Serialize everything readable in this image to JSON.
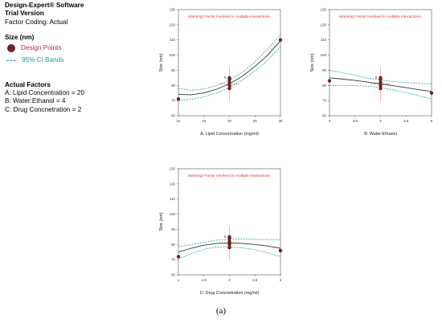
{
  "info": {
    "software": "Design-Expert® Software",
    "version": "Trial Version",
    "coding": "Factor Coding: Actual",
    "response": "Size (nm)",
    "legend": {
      "points": "Design Points",
      "ci": "95% CI Bands"
    },
    "actual_factors": {
      "heading": "Actual Factors",
      "a": "A: Lipid Concentration = 20",
      "b": "B: Water:Ethanol = 4",
      "c": "C: Drug Concnetration = 2"
    }
  },
  "caption": "(a)",
  "colors": {
    "line": "#333333",
    "ci": "#1aa3a3",
    "points": "#8b1a1a",
    "warning": "#e03030",
    "crosshair": "#e03030"
  },
  "chart_data": [
    {
      "type": "line",
      "warning": "Warning! Factor involved in multiple interactions.",
      "xlabel": "A: Lipid Concentration (mg/ml)",
      "ylabel": "Size (nm)",
      "xlim": [
        10,
        30
      ],
      "ylim": [
        60,
        130
      ],
      "xticks": [
        "10",
        "15",
        "20",
        "25",
        "30"
      ],
      "yticks": [
        "60",
        "70",
        "80",
        "90",
        "100",
        "110",
        "120",
        "130"
      ],
      "center_x": 20,
      "center_y": 81,
      "center_err": [
        70,
        92
      ],
      "series": [
        {
          "role": "fit",
          "x": [
            10,
            12.5,
            15,
            17.5,
            20,
            22.5,
            25,
            27.5,
            30
          ],
          "y": [
            74,
            73.8,
            75,
            77.5,
            81,
            86,
            92.5,
            100,
            109.5
          ]
        },
        {
          "role": "ci_upper",
          "x": [
            10,
            12.5,
            15,
            17.5,
            20,
            22.5,
            25,
            27.5,
            30
          ],
          "y": [
            78,
            76.8,
            77.6,
            80,
            83.5,
            88.5,
            95.5,
            104,
            113.5
          ]
        },
        {
          "role": "ci_lower",
          "x": [
            10,
            12.5,
            15,
            17.5,
            20,
            22.5,
            25,
            27.5,
            30
          ],
          "y": [
            70,
            70.8,
            72.4,
            75,
            78.5,
            83.5,
            89.5,
            96.5,
            105.5
          ]
        }
      ],
      "points": [
        {
          "x": 10,
          "y": 71
        },
        {
          "x": 20,
          "y": 78
        },
        {
          "x": 20,
          "y": 80
        },
        {
          "x": 20,
          "y": 82
        },
        {
          "x": 20,
          "y": 84
        },
        {
          "x": 20,
          "y": 85
        },
        {
          "x": 30,
          "y": 110
        }
      ],
      "point_label": {
        "x": 20,
        "y": 85,
        "text": "5"
      }
    },
    {
      "type": "line",
      "warning": "Warning! Factor involved in multiple interactions.",
      "xlabel": "B: Water:Ethanol",
      "ylabel": "Size (nm)",
      "xlim": [
        3,
        5
      ],
      "ylim": [
        60,
        130
      ],
      "xticks": [
        "3",
        "3.5",
        "4",
        "4.5",
        "5"
      ],
      "yticks": [
        "60",
        "70",
        "80",
        "90",
        "100",
        "110",
        "120",
        "130"
      ],
      "center_x": 4,
      "center_y": 81,
      "center_err": [
        70,
        92
      ],
      "series": [
        {
          "role": "fit",
          "x": [
            3,
            3.25,
            3.5,
            3.75,
            4,
            4.25,
            4.5,
            4.75,
            5
          ],
          "y": [
            85,
            84.2,
            83.3,
            82.2,
            81,
            79.8,
            78.5,
            77.2,
            76
          ]
        },
        {
          "role": "ci_upper",
          "x": [
            3,
            3.25,
            3.5,
            3.75,
            4,
            4.25,
            4.5,
            4.75,
            5
          ],
          "y": [
            90,
            88.4,
            86.8,
            84.9,
            83.5,
            82.6,
            81.8,
            81.3,
            81
          ]
        },
        {
          "role": "ci_lower",
          "x": [
            3,
            3.25,
            3.5,
            3.75,
            4,
            4.25,
            4.5,
            4.75,
            5
          ],
          "y": [
            80,
            80,
            79.8,
            79.5,
            78.5,
            77,
            75.2,
            73.2,
            71
          ]
        }
      ],
      "points": [
        {
          "x": 3,
          "y": 83
        },
        {
          "x": 4,
          "y": 78
        },
        {
          "x": 4,
          "y": 80
        },
        {
          "x": 4,
          "y": 82
        },
        {
          "x": 4,
          "y": 84
        },
        {
          "x": 4,
          "y": 85
        },
        {
          "x": 5,
          "y": 75
        }
      ],
      "point_label": {
        "x": 4,
        "y": 85,
        "text": "5"
      }
    },
    {
      "type": "line",
      "warning": "Warning! Factor involved in multiple interactions.",
      "xlabel": "C: Drug Concnetration (mg/ml)",
      "ylabel": "Size (nm)",
      "xlim": [
        1,
        3
      ],
      "ylim": [
        60,
        130
      ],
      "xticks": [
        "1",
        "1.5",
        "2",
        "2.5",
        "3"
      ],
      "yticks": [
        "60",
        "70",
        "80",
        "90",
        "100",
        "110",
        "120",
        "130"
      ],
      "center_x": 2,
      "center_y": 81,
      "center_err": [
        70,
        92
      ],
      "series": [
        {
          "role": "fit",
          "x": [
            1,
            1.25,
            1.5,
            1.75,
            2,
            2.25,
            2.5,
            2.75,
            3
          ],
          "y": [
            75,
            77.5,
            79.5,
            80.7,
            81,
            80.7,
            80,
            79,
            77.5
          ]
        },
        {
          "role": "ci_upper",
          "x": [
            1,
            1.25,
            1.5,
            1.75,
            2,
            2.25,
            2.5,
            2.75,
            3
          ],
          "y": [
            78.5,
            80,
            81.5,
            82.8,
            83.5,
            83.6,
            83.4,
            83.2,
            83
          ]
        },
        {
          "role": "ci_lower",
          "x": [
            1,
            1.25,
            1.5,
            1.75,
            2,
            2.25,
            2.5,
            2.75,
            3
          ],
          "y": [
            70.5,
            74,
            76.8,
            78.3,
            78.5,
            77.8,
            76.5,
            74.5,
            72
          ]
        }
      ],
      "points": [
        {
          "x": 1,
          "y": 72
        },
        {
          "x": 2,
          "y": 78
        },
        {
          "x": 2,
          "y": 80
        },
        {
          "x": 2,
          "y": 82
        },
        {
          "x": 2,
          "y": 84
        },
        {
          "x": 2,
          "y": 85
        },
        {
          "x": 3,
          "y": 76
        }
      ],
      "point_label": {
        "x": 2,
        "y": 85,
        "text": "5"
      }
    }
  ]
}
